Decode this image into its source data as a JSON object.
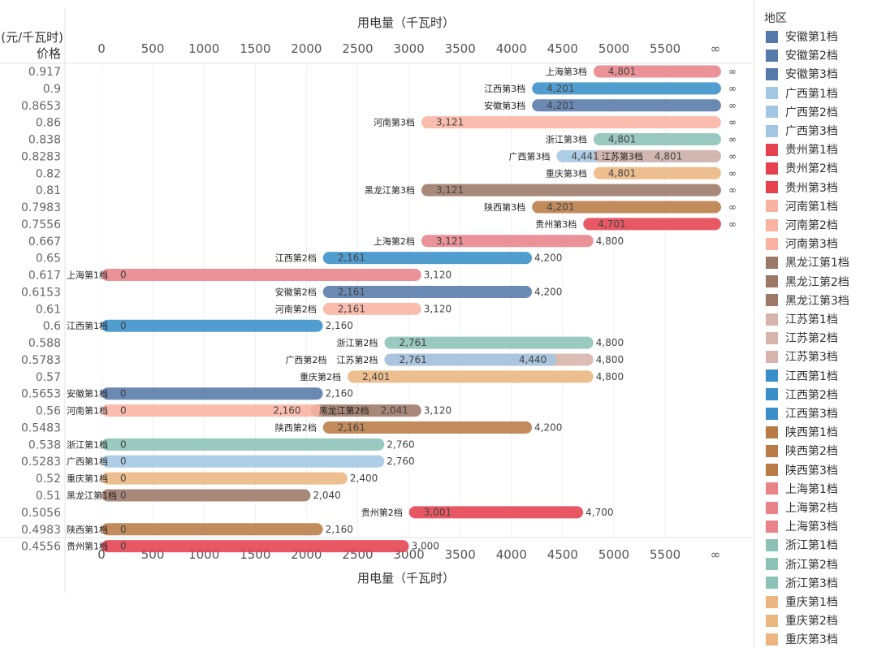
{
  "legend": {
    "title": "地区",
    "items": [
      {
        "label": "安徽第1档",
        "region": "安徽"
      },
      {
        "label": "安徽第2档",
        "region": "安徽"
      },
      {
        "label": "安徽第3档",
        "region": "安徽"
      },
      {
        "label": "广西第1档",
        "region": "广西"
      },
      {
        "label": "广西第2档",
        "region": "广西"
      },
      {
        "label": "广西第3档",
        "region": "广西"
      },
      {
        "label": "贵州第1档",
        "region": "贵州"
      },
      {
        "label": "贵州第2档",
        "region": "贵州"
      },
      {
        "label": "贵州第3档",
        "region": "贵州"
      },
      {
        "label": "河南第1档",
        "region": "河南"
      },
      {
        "label": "河南第2档",
        "region": "河南"
      },
      {
        "label": "河南第3档",
        "region": "河南"
      },
      {
        "label": "黑龙江第1档",
        "region": "黑龙江"
      },
      {
        "label": "黑龙江第2档",
        "region": "黑龙江"
      },
      {
        "label": "黑龙江第3档",
        "region": "黑龙江"
      },
      {
        "label": "江苏第1档",
        "region": "江苏"
      },
      {
        "label": "江苏第2档",
        "region": "江苏"
      },
      {
        "label": "江苏第3档",
        "region": "江苏"
      },
      {
        "label": "江西第1档",
        "region": "江西"
      },
      {
        "label": "江西第2档",
        "region": "江西"
      },
      {
        "label": "江西第3档",
        "region": "江西"
      },
      {
        "label": "陕西第1档",
        "region": "陕西"
      },
      {
        "label": "陕西第2档",
        "region": "陕西"
      },
      {
        "label": "陕西第3档",
        "region": "陕西"
      },
      {
        "label": "上海第1档",
        "region": "上海"
      },
      {
        "label": "上海第2档",
        "region": "上海"
      },
      {
        "label": "上海第3档",
        "region": "上海"
      },
      {
        "label": "浙江第1档",
        "region": "浙江"
      },
      {
        "label": "浙江第2档",
        "region": "浙江"
      },
      {
        "label": "浙江第3档",
        "region": "浙江"
      },
      {
        "label": "重庆第1档",
        "region": "重庆"
      },
      {
        "label": "重庆第2档",
        "region": "重庆"
      },
      {
        "label": "重庆第3档",
        "region": "重庆"
      }
    ]
  },
  "colors": {
    "安徽": "#5579a9",
    "广西": "#a3c6e3",
    "贵州": "#e5414f",
    "河南": "#f9b3a2",
    "黑龙江": "#9c7866",
    "江苏": "#d6b4ab",
    "江西": "#3a8fc9",
    "陕西": "#b87b45",
    "上海": "#e8838a",
    "浙江": "#8cc2b6",
    "重庆": "#ebb67f"
  },
  "chart_data": {
    "type": "gantt-bar",
    "xlabel": "用电量（千瓦时）",
    "ylabel": "价格",
    "ylabel_unit": "(元/千瓦时)",
    "x_ticks": [
      "0",
      "500",
      "1000",
      "1500",
      "2000",
      "2500",
      "3000",
      "3500",
      "4000",
      "4500",
      "5000",
      "5500",
      "∞"
    ],
    "xlim": [
      0,
      5500
    ],
    "grid": "vertical",
    "legend_position": "right",
    "rows": [
      {
        "price": "0.917",
        "segments": [
          {
            "name": "上海第3档",
            "region": "上海",
            "start": 4801,
            "end": "∞"
          }
        ]
      },
      {
        "price": "0.9",
        "segments": [
          {
            "name": "江西第3档",
            "region": "江西",
            "start": 4201,
            "end": "∞"
          }
        ]
      },
      {
        "price": "0.8653",
        "segments": [
          {
            "name": "安徽第3档",
            "region": "安徽",
            "start": 4201,
            "end": "∞"
          }
        ]
      },
      {
        "price": "0.86",
        "segments": [
          {
            "name": "河南第3档",
            "region": "河南",
            "start": 3121,
            "end": "∞"
          }
        ]
      },
      {
        "price": "0.838",
        "segments": [
          {
            "name": "浙江第3档",
            "region": "浙江",
            "start": 4801,
            "end": "∞"
          }
        ]
      },
      {
        "price": "0.8283",
        "segments": [
          {
            "name": "广西第3档",
            "region": "广西",
            "start": 4441,
            "end": "∞"
          },
          {
            "name": "江苏第3档",
            "region": "江苏",
            "start": 4801,
            "end": "∞"
          }
        ]
      },
      {
        "price": "0.82",
        "segments": [
          {
            "name": "重庆第3档",
            "region": "重庆",
            "start": 4801,
            "end": "∞"
          }
        ]
      },
      {
        "price": "0.81",
        "segments": [
          {
            "name": "黑龙江第3档",
            "region": "黑龙江",
            "start": 3121,
            "end": "∞"
          }
        ]
      },
      {
        "price": "0.7983",
        "segments": [
          {
            "name": "陕西第3档",
            "region": "陕西",
            "start": 4201,
            "end": "∞"
          }
        ]
      },
      {
        "price": "0.7556",
        "segments": [
          {
            "name": "贵州第3档",
            "region": "贵州",
            "start": 4701,
            "end": "∞"
          }
        ]
      },
      {
        "price": "0.667",
        "segments": [
          {
            "name": "上海第2档",
            "region": "上海",
            "start": 3121,
            "end": 4800
          }
        ]
      },
      {
        "price": "0.65",
        "segments": [
          {
            "name": "江西第2档",
            "region": "江西",
            "start": 2161,
            "end": 4200
          }
        ]
      },
      {
        "price": "0.617",
        "segments": [
          {
            "name": "上海第1档",
            "region": "上海",
            "start": 0,
            "end": 3120
          }
        ]
      },
      {
        "price": "0.6153",
        "segments": [
          {
            "name": "安徽第2档",
            "region": "安徽",
            "start": 2161,
            "end": 4200
          }
        ]
      },
      {
        "price": "0.61",
        "segments": [
          {
            "name": "河南第2档",
            "region": "河南",
            "start": 2161,
            "end": 3120
          }
        ]
      },
      {
        "price": "0.6",
        "segments": [
          {
            "name": "江西第1档",
            "region": "江西",
            "start": 0,
            "end": 2160
          }
        ]
      },
      {
        "price": "0.588",
        "segments": [
          {
            "name": "浙江第2档",
            "region": "浙江",
            "start": 2761,
            "end": 4800
          }
        ]
      },
      {
        "price": "0.5783",
        "segments": [
          {
            "name": "广西第2档",
            "region": "广西",
            "start": 2761,
            "end": 4440
          },
          {
            "name": "江苏第2档",
            "region": "江苏",
            "start": 2761,
            "end": 4800
          }
        ]
      },
      {
        "price": "0.57",
        "segments": [
          {
            "name": "重庆第2档",
            "region": "重庆",
            "start": 2401,
            "end": 4800
          }
        ]
      },
      {
        "price": "0.5653",
        "segments": [
          {
            "name": "安徽第1档",
            "region": "安徽",
            "start": 0,
            "end": 2160
          }
        ]
      },
      {
        "price": "0.56",
        "segments": [
          {
            "name": "河南第1档",
            "region": "河南",
            "start": 0,
            "end": 2160
          },
          {
            "name": "黑龙江第2档",
            "region": "黑龙江",
            "start": 2041,
            "end": 3120
          }
        ]
      },
      {
        "price": "0.5483",
        "segments": [
          {
            "name": "陕西第2档",
            "region": "陕西",
            "start": 2161,
            "end": 4200
          }
        ]
      },
      {
        "price": "0.538",
        "segments": [
          {
            "name": "浙江第1档",
            "region": "浙江",
            "start": 0,
            "end": 2760
          }
        ]
      },
      {
        "price": "0.5283",
        "segments": [
          {
            "name": "广西第1档",
            "region": "广西",
            "start": 0,
            "end": 2760
          }
        ]
      },
      {
        "price": "0.52",
        "segments": [
          {
            "name": "重庆第1档",
            "region": "重庆",
            "start": 0,
            "end": 2400
          }
        ]
      },
      {
        "price": "0.51",
        "segments": [
          {
            "name": "黑龙江第1档",
            "region": "黑龙江",
            "start": 0,
            "end": 2040
          }
        ]
      },
      {
        "price": "0.5056",
        "segments": [
          {
            "name": "贵州第2档",
            "region": "贵州",
            "start": 3001,
            "end": 4700
          }
        ]
      },
      {
        "price": "0.4983",
        "segments": [
          {
            "name": "陕西第1档",
            "region": "陕西",
            "start": 0,
            "end": 2160
          }
        ]
      },
      {
        "price": "0.4556",
        "segments": [
          {
            "name": "贵州第1档",
            "region": "贵州",
            "start": 0,
            "end": 3000
          }
        ]
      }
    ]
  }
}
